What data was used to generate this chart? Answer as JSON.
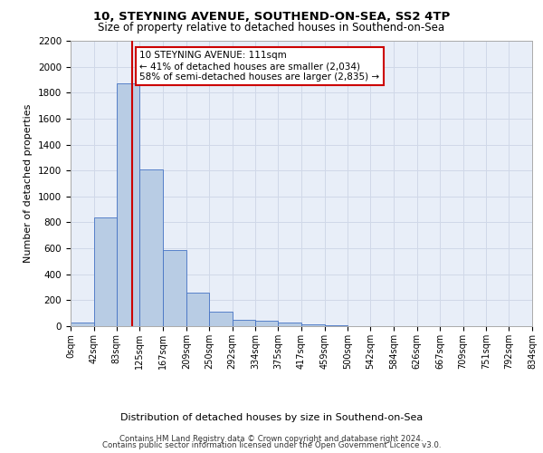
{
  "title1": "10, STEYNING AVENUE, SOUTHEND-ON-SEA, SS2 4TP",
  "title2": "Size of property relative to detached houses in Southend-on-Sea",
  "xlabel": "Distribution of detached houses by size in Southend-on-Sea",
  "ylabel": "Number of detached properties",
  "footnote1": "Contains HM Land Registry data © Crown copyright and database right 2024.",
  "footnote2": "Contains public sector information licensed under the Open Government Licence v3.0.",
  "bar_edges": [
    0,
    42,
    83,
    125,
    167,
    209,
    250,
    292,
    334,
    375,
    417,
    459,
    500,
    542,
    584,
    626,
    667,
    709,
    751,
    792,
    834
  ],
  "bar_heights": [
    25,
    840,
    1870,
    1210,
    590,
    255,
    115,
    50,
    40,
    30,
    15,
    5,
    0,
    0,
    0,
    0,
    0,
    0,
    0,
    0
  ],
  "bar_color": "#b8cce4",
  "bar_edgecolor": "#4472c4",
  "tick_labels": [
    "0sqm",
    "42sqm",
    "83sqm",
    "125sqm",
    "167sqm",
    "209sqm",
    "250sqm",
    "292sqm",
    "334sqm",
    "375sqm",
    "417sqm",
    "459sqm",
    "500sqm",
    "542sqm",
    "584sqm",
    "626sqm",
    "667sqm",
    "709sqm",
    "751sqm",
    "792sqm",
    "834sqm"
  ],
  "property_line_x": 111,
  "annotation_title": "10 STEYNING AVENUE: 111sqm",
  "annotation_line1": "← 41% of detached houses are smaller (2,034)",
  "annotation_line2": "58% of semi-detached houses are larger (2,835) →",
  "ylim": [
    0,
    2200
  ],
  "yticks": [
    0,
    200,
    400,
    600,
    800,
    1000,
    1200,
    1400,
    1600,
    1800,
    2000,
    2200
  ],
  "grid_color": "#d0d8e8",
  "background_color": "#e8eef8",
  "red_line_color": "#cc0000",
  "annotation_box_color": "#ffffff",
  "annotation_box_edgecolor": "#cc0000"
}
